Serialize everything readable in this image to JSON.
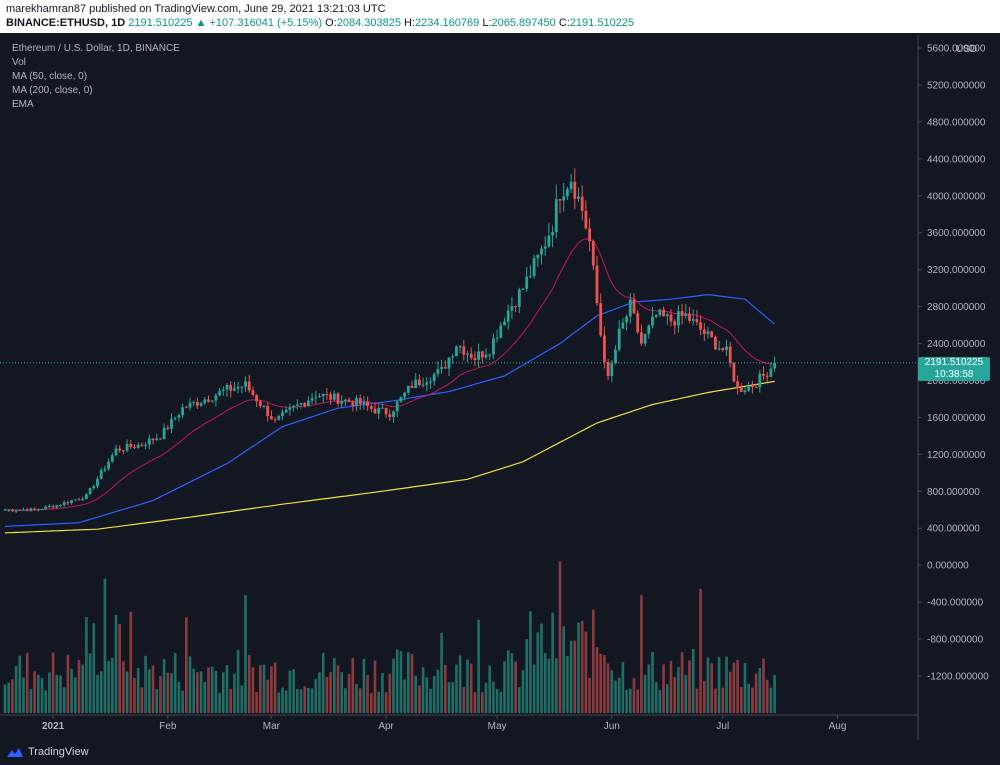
{
  "header": {
    "published": "marekhamran87 published on TradingView.com, June 29, 2021 13:21:03 UTC",
    "symbol": "BINANCE:ETHUSD, 1D",
    "last": "2191.510225",
    "change": "+107.316041 (+5.15%)",
    "o_label": "O:",
    "o_val": "2084.303825",
    "h_label": "H:",
    "h_val": "2234.160769",
    "l_label": "L:",
    "l_val": "2065.897450",
    "c_label": "C:",
    "c_val": "2191.510225",
    "up_arrow": "▲"
  },
  "legend": {
    "title": "Ethereum / U.S. Dollar, 1D, BINANCE",
    "vol": "Vol",
    "ma50": "MA (50, close, 0)",
    "ma200": "MA (200, close, 0)",
    "ema": "EMA"
  },
  "price_tag": {
    "price": "2191.510225",
    "countdown": "10:38:58"
  },
  "footer": {
    "brand": "TradingView",
    "logo_icon": "tradingview-logo-icon"
  },
  "colors": {
    "background": "#131722",
    "up": "#26a69a",
    "down": "#ef5350",
    "ma50": "#2962ff",
    "ma200": "#f0e040",
    "ema": "#c2185b",
    "axis_text": "#b2b5be"
  },
  "chart_data": {
    "type": "candlestick",
    "title": "Ethereum / U.S. Dollar, 1D, BINANCE",
    "currency_label": "USD",
    "y_ticks": [
      "5600.000000",
      "5200.000000",
      "4800.000000",
      "4400.000000",
      "4000.000000",
      "3600.000000",
      "3200.000000",
      "2800.000000",
      "2400.000000",
      "2000.000000",
      "1600.000000",
      "1200.000000",
      "800.000000",
      "400.000000",
      "0.000000",
      "-400.000000",
      "-800.000000",
      "-1200.000000"
    ],
    "y_tick_values": [
      5600,
      5200,
      4800,
      4400,
      4000,
      3600,
      3200,
      2800,
      2400,
      2000,
      1600,
      1200,
      800,
      400,
      0,
      -400,
      -800,
      -1200
    ],
    "x_ticks": [
      "2021",
      "Feb",
      "Mar",
      "Apr",
      "May",
      "Jun",
      "Jul",
      "Aug"
    ],
    "x_tick_days": [
      13,
      44,
      72,
      103,
      133,
      164,
      194,
      225
    ],
    "price_keypoints": [
      [
        0,
        600
      ],
      [
        8,
        600
      ],
      [
        14,
        650
      ],
      [
        22,
        750
      ],
      [
        30,
        1250
      ],
      [
        36,
        1300
      ],
      [
        42,
        1400
      ],
      [
        48,
        1700
      ],
      [
        54,
        1800
      ],
      [
        60,
        1900
      ],
      [
        65,
        1950
      ],
      [
        70,
        1700
      ],
      [
        73,
        1550
      ],
      [
        78,
        1700
      ],
      [
        84,
        1850
      ],
      [
        90,
        1800
      ],
      [
        96,
        1750
      ],
      [
        100,
        1680
      ],
      [
        104,
        1650
      ],
      [
        110,
        1950
      ],
      [
        115,
        2050
      ],
      [
        118,
        2100
      ],
      [
        122,
        2400
      ],
      [
        127,
        2250
      ],
      [
        131,
        2350
      ],
      [
        135,
        2700
      ],
      [
        140,
        3000
      ],
      [
        145,
        3400
      ],
      [
        148,
        3700
      ],
      [
        150,
        4050
      ],
      [
        153,
        4200
      ],
      [
        156,
        3850
      ],
      [
        158,
        3500
      ],
      [
        161,
        2500
      ],
      [
        163,
        2000
      ],
      [
        166,
        2500
      ],
      [
        169,
        2800
      ],
      [
        172,
        2400
      ],
      [
        176,
        2700
      ],
      [
        180,
        2650
      ],
      [
        184,
        2700
      ],
      [
        188,
        2550
      ],
      [
        192,
        2400
      ],
      [
        195,
        2300
      ],
      [
        198,
        1900
      ],
      [
        202,
        1950
      ],
      [
        205,
        2050
      ],
      [
        208,
        2191
      ]
    ],
    "ma50_keypoints": [
      [
        0,
        420
      ],
      [
        20,
        460
      ],
      [
        40,
        700
      ],
      [
        60,
        1100
      ],
      [
        75,
        1500
      ],
      [
        90,
        1700
      ],
      [
        105,
        1780
      ],
      [
        120,
        1880
      ],
      [
        135,
        2050
      ],
      [
        150,
        2400
      ],
      [
        160,
        2700
      ],
      [
        170,
        2850
      ],
      [
        180,
        2880
      ],
      [
        190,
        2930
      ],
      [
        200,
        2880
      ],
      [
        208,
        2610
      ]
    ],
    "ma200_keypoints": [
      [
        0,
        350
      ],
      [
        25,
        390
      ],
      [
        50,
        520
      ],
      [
        75,
        660
      ],
      [
        100,
        790
      ],
      [
        125,
        930
      ],
      [
        140,
        1120
      ],
      [
        160,
        1540
      ],
      [
        175,
        1740
      ],
      [
        190,
        1870
      ],
      [
        208,
        1990
      ]
    ],
    "last_close": 2191.51,
    "last_countdown": "10:38:58"
  }
}
